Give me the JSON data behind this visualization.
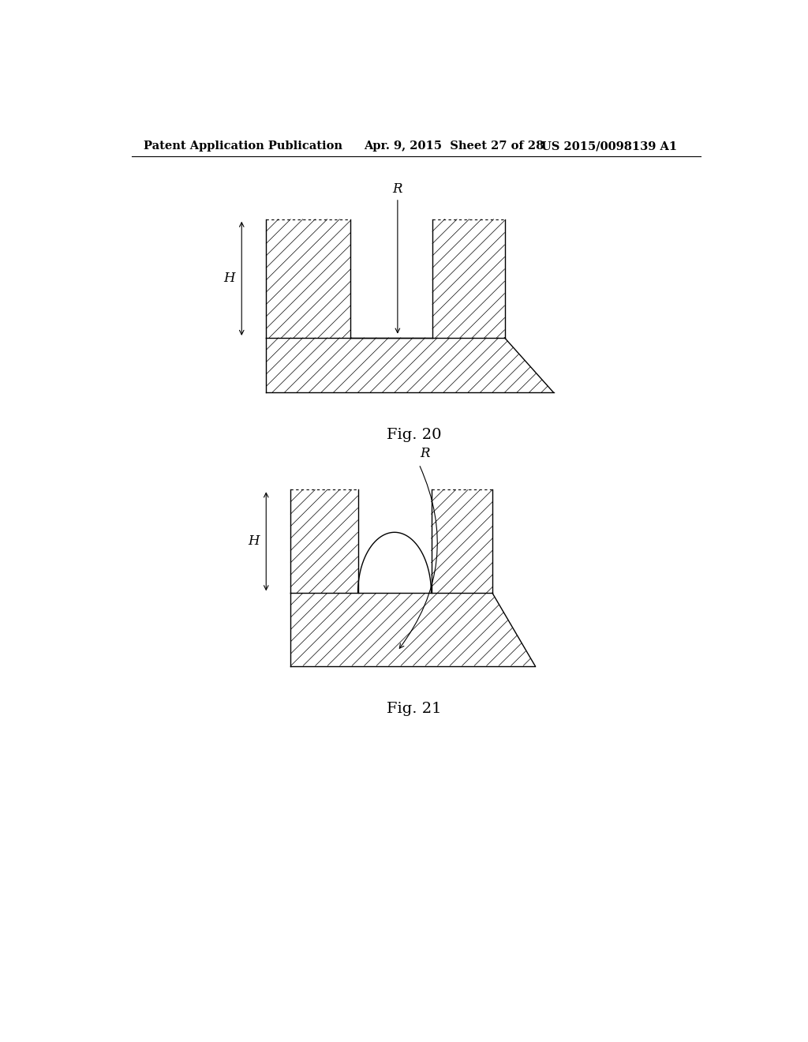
{
  "header_left": "Patent Application Publication",
  "header_mid": "Apr. 9, 2015  Sheet 27 of 28",
  "header_right": "US 2015/0098139 A1",
  "fig20_label": "Fig. 20",
  "fig21_label": "Fig. 21",
  "R_label": "R",
  "H_label": "H",
  "line_color": "#000000",
  "bg_color": "#ffffff",
  "header_fontsize": 10.5,
  "fig_label_fontsize": 14,
  "annotation_fontsize": 12
}
